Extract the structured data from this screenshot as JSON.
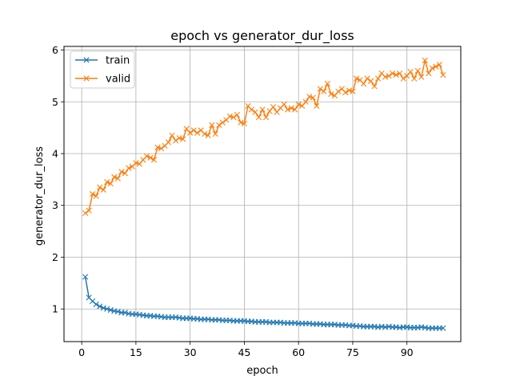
{
  "chart_data": {
    "type": "line",
    "title": "epoch vs generator_dur_loss",
    "xlabel": "epoch",
    "ylabel": "generator_dur_loss",
    "xlim": [
      -4.9,
      104.9
    ],
    "ylim": [
      0.37,
      6.07
    ],
    "xticks": [
      0,
      15,
      30,
      45,
      60,
      75,
      90
    ],
    "yticks": [
      1,
      2,
      3,
      4,
      5,
      6
    ],
    "grid": true,
    "legend_position": "upper-left",
    "marker": "x",
    "series": [
      {
        "name": "train",
        "color": "#1f77b4",
        "x": [
          1,
          2,
          3,
          4,
          5,
          6,
          7,
          8,
          9,
          10,
          11,
          12,
          13,
          14,
          15,
          16,
          17,
          18,
          19,
          20,
          21,
          22,
          23,
          24,
          25,
          26,
          27,
          28,
          29,
          30,
          31,
          32,
          33,
          34,
          35,
          36,
          37,
          38,
          39,
          40,
          41,
          42,
          43,
          44,
          45,
          46,
          47,
          48,
          49,
          50,
          51,
          52,
          53,
          54,
          55,
          56,
          57,
          58,
          59,
          60,
          61,
          62,
          63,
          64,
          65,
          66,
          67,
          68,
          69,
          70,
          71,
          72,
          73,
          74,
          75,
          76,
          77,
          78,
          79,
          80,
          81,
          82,
          83,
          84,
          85,
          86,
          87,
          88,
          89,
          90,
          91,
          92,
          93,
          94,
          95,
          96,
          97,
          98,
          99,
          100
        ],
        "values": [
          1.62,
          1.22,
          1.15,
          1.09,
          1.05,
          1.02,
          1.0,
          0.98,
          0.96,
          0.95,
          0.93,
          0.93,
          0.91,
          0.9,
          0.9,
          0.89,
          0.88,
          0.87,
          0.87,
          0.86,
          0.86,
          0.85,
          0.84,
          0.84,
          0.84,
          0.84,
          0.83,
          0.82,
          0.82,
          0.82,
          0.81,
          0.81,
          0.8,
          0.8,
          0.8,
          0.79,
          0.79,
          0.79,
          0.78,
          0.78,
          0.78,
          0.77,
          0.77,
          0.77,
          0.77,
          0.76,
          0.76,
          0.75,
          0.75,
          0.75,
          0.75,
          0.74,
          0.74,
          0.74,
          0.74,
          0.73,
          0.73,
          0.73,
          0.73,
          0.72,
          0.72,
          0.72,
          0.72,
          0.71,
          0.71,
          0.71,
          0.7,
          0.7,
          0.7,
          0.7,
          0.69,
          0.69,
          0.69,
          0.68,
          0.68,
          0.67,
          0.67,
          0.66,
          0.66,
          0.66,
          0.66,
          0.65,
          0.66,
          0.65,
          0.66,
          0.65,
          0.65,
          0.64,
          0.65,
          0.65,
          0.64,
          0.64,
          0.64,
          0.65,
          0.64,
          0.63,
          0.63,
          0.63,
          0.63,
          0.63
        ]
      },
      {
        "name": "valid",
        "color": "#ff7f0e",
        "x": [
          1,
          2,
          3,
          4,
          5,
          6,
          7,
          8,
          9,
          10,
          11,
          12,
          13,
          14,
          15,
          16,
          17,
          18,
          19,
          20,
          21,
          22,
          23,
          24,
          25,
          26,
          27,
          28,
          29,
          30,
          31,
          32,
          33,
          34,
          35,
          36,
          37,
          38,
          39,
          40,
          41,
          42,
          43,
          44,
          45,
          46,
          47,
          48,
          49,
          50,
          51,
          52,
          53,
          54,
          55,
          56,
          57,
          58,
          59,
          60,
          61,
          62,
          63,
          64,
          65,
          66,
          67,
          68,
          69,
          70,
          71,
          72,
          73,
          74,
          75,
          76,
          77,
          78,
          79,
          80,
          81,
          82,
          83,
          84,
          85,
          86,
          87,
          88,
          89,
          90,
          91,
          92,
          93,
          94,
          95,
          96,
          97,
          98,
          99,
          100
        ],
        "values": [
          2.85,
          2.9,
          3.22,
          3.18,
          3.35,
          3.3,
          3.45,
          3.42,
          3.55,
          3.52,
          3.65,
          3.62,
          3.72,
          3.75,
          3.82,
          3.8,
          3.88,
          3.95,
          3.92,
          3.88,
          4.12,
          4.1,
          4.15,
          4.22,
          4.35,
          4.25,
          4.3,
          4.28,
          4.48,
          4.4,
          4.45,
          4.4,
          4.45,
          4.38,
          4.35,
          4.55,
          4.38,
          4.55,
          4.6,
          4.65,
          4.72,
          4.7,
          4.75,
          4.6,
          4.58,
          4.92,
          4.85,
          4.8,
          4.7,
          4.85,
          4.7,
          4.82,
          4.9,
          4.8,
          4.88,
          4.95,
          4.85,
          4.88,
          4.85,
          4.95,
          4.92,
          5.0,
          5.1,
          5.08,
          4.92,
          5.25,
          5.2,
          5.35,
          5.15,
          5.12,
          5.2,
          5.25,
          5.18,
          5.22,
          5.2,
          5.45,
          5.42,
          5.35,
          5.45,
          5.4,
          5.3,
          5.45,
          5.55,
          5.48,
          5.5,
          5.55,
          5.52,
          5.55,
          5.45,
          5.5,
          5.58,
          5.45,
          5.6,
          5.48,
          5.8,
          5.55,
          5.65,
          5.68,
          5.72,
          5.52
        ]
      }
    ]
  }
}
